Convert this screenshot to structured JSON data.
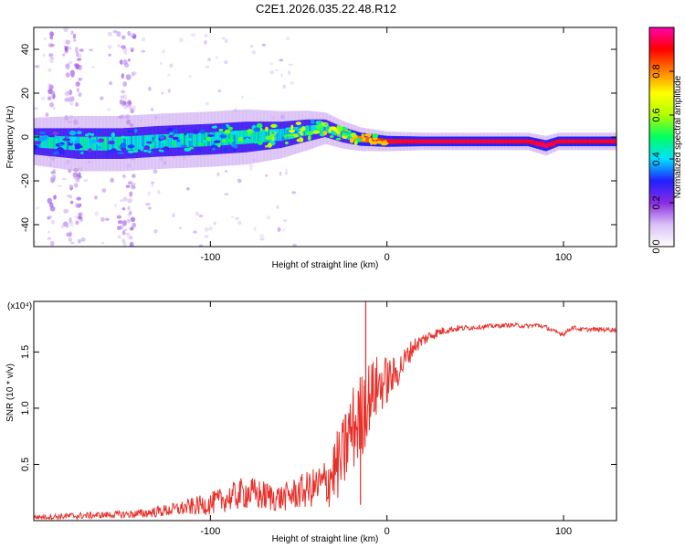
{
  "figure_title": "C2E1.2026.035.22.48.R12",
  "chart_data": [
    {
      "id": "spectrogram",
      "type": "heatmap",
      "title": "C2E1.2026.035.22.48.R12",
      "xlabel": "Height of straight line (km)",
      "ylabel": "Frequency (Hz)",
      "xlim": [
        -200,
        130
      ],
      "ylim": [
        -50,
        50
      ],
      "xticks": [
        -100,
        0,
        100
      ],
      "yticks": [
        -40,
        -20,
        0,
        20,
        40
      ],
      "colorbar": {
        "label": "Normalized spectral amplitude",
        "range": [
          0,
          1
        ],
        "ticks": [
          0.0,
          0.2,
          0.4,
          0.6,
          0.8
        ],
        "tick_labels": [
          "0.0",
          "0.2",
          "0.4",
          "0.6",
          "0.8"
        ],
        "colors": [
          "#ffffff",
          "#d9c2f5",
          "#8a2be2",
          "#2020ff",
          "#00e0ff",
          "#00ff60",
          "#b0ff00",
          "#ffff00",
          "#ff8000",
          "#ff0000",
          "#ff00b0"
        ]
      },
      "ridge": [
        {
          "x": -200,
          "f": -2,
          "w": 6,
          "a": 0.28
        },
        {
          "x": -175,
          "f": -3,
          "w": 7,
          "a": 0.32
        },
        {
          "x": -150,
          "f": -3,
          "w": 7,
          "a": 0.34
        },
        {
          "x": -130,
          "f": -2,
          "w": 7,
          "a": 0.38
        },
        {
          "x": -100,
          "f": -1,
          "w": 7,
          "a": 0.42
        },
        {
          "x": -80,
          "f": 0,
          "w": 7,
          "a": 0.45
        },
        {
          "x": -60,
          "f": 1,
          "w": 6,
          "a": 0.5
        },
        {
          "x": -45,
          "f": 3,
          "w": 5,
          "a": 0.55
        },
        {
          "x": -35,
          "f": 4,
          "w": 4,
          "a": 0.6
        },
        {
          "x": -25,
          "f": 1,
          "w": 3.5,
          "a": 0.7
        },
        {
          "x": -15,
          "f": -1,
          "w": 3,
          "a": 0.8
        },
        {
          "x": 0,
          "f": -2,
          "w": 2.5,
          "a": 0.88
        },
        {
          "x": 20,
          "f": -2,
          "w": 2.2,
          "a": 0.92
        },
        {
          "x": 60,
          "f": -2,
          "w": 2.2,
          "a": 0.93
        },
        {
          "x": 80,
          "f": -2,
          "w": 2.2,
          "a": 0.9
        },
        {
          "x": 90,
          "f": -4,
          "w": 2.5,
          "a": 0.95
        },
        {
          "x": 97,
          "f": -2,
          "w": 2.2,
          "a": 0.9
        },
        {
          "x": 130,
          "f": -2,
          "w": 2.2,
          "a": 0.9
        }
      ]
    },
    {
      "id": "snr",
      "type": "line",
      "xlabel": "Height of straight line (km)",
      "ylabel": "SNR (10 * v/v)",
      "scale_label": "(x10⁴)",
      "xlim": [
        -200,
        130
      ],
      "ylim": [
        0,
        1.95
      ],
      "xticks": [
        -100,
        0,
        100
      ],
      "yticks": [
        0.5,
        1.0,
        1.5
      ],
      "ytick_labels": [
        "0.5",
        "1.0",
        "1.5"
      ],
      "color": "#e8302a",
      "series": [
        {
          "name": "SNR",
          "x": [
            -200,
            -180,
            -160,
            -140,
            -120,
            -100,
            -90,
            -80,
            -70,
            -60,
            -50,
            -40,
            -35,
            -30,
            -25,
            -22,
            -18,
            -15,
            -12,
            -10,
            -5,
            0,
            5,
            10,
            15,
            20,
            25,
            30,
            35,
            40,
            50,
            60,
            70,
            80,
            85,
            90,
            95,
            100,
            105,
            110,
            120,
            130
          ],
          "y": [
            0.03,
            0.04,
            0.05,
            0.06,
            0.1,
            0.15,
            0.2,
            0.25,
            0.22,
            0.2,
            0.25,
            0.3,
            0.32,
            0.45,
            0.55,
            0.75,
            0.85,
            0.9,
            1.05,
            1.1,
            1.2,
            1.25,
            1.3,
            1.42,
            1.55,
            1.6,
            1.65,
            1.68,
            1.7,
            1.71,
            1.72,
            1.73,
            1.74,
            1.73,
            1.74,
            1.72,
            1.68,
            1.66,
            1.72,
            1.7,
            1.7,
            1.7
          ],
          "noise": [
            0.02,
            0.03,
            0.03,
            0.04,
            0.06,
            0.1,
            0.12,
            0.15,
            0.14,
            0.12,
            0.15,
            0.18,
            0.25,
            0.3,
            0.35,
            0.4,
            0.4,
            0.42,
            0.38,
            0.32,
            0.28,
            0.22,
            0.15,
            0.12,
            0.08,
            0.06,
            0.05,
            0.04,
            0.03,
            0.03,
            0.02,
            0.02,
            0.02,
            0.02,
            0.02,
            0.02,
            0.02,
            0.02,
            0.02,
            0.02,
            0.02,
            0.02
          ],
          "spikes": [
            {
              "x": -12,
              "y": 1.95
            },
            {
              "x": -13,
              "y": 1.2
            },
            {
              "x": -15,
              "y": 0.14
            }
          ]
        }
      ]
    }
  ]
}
